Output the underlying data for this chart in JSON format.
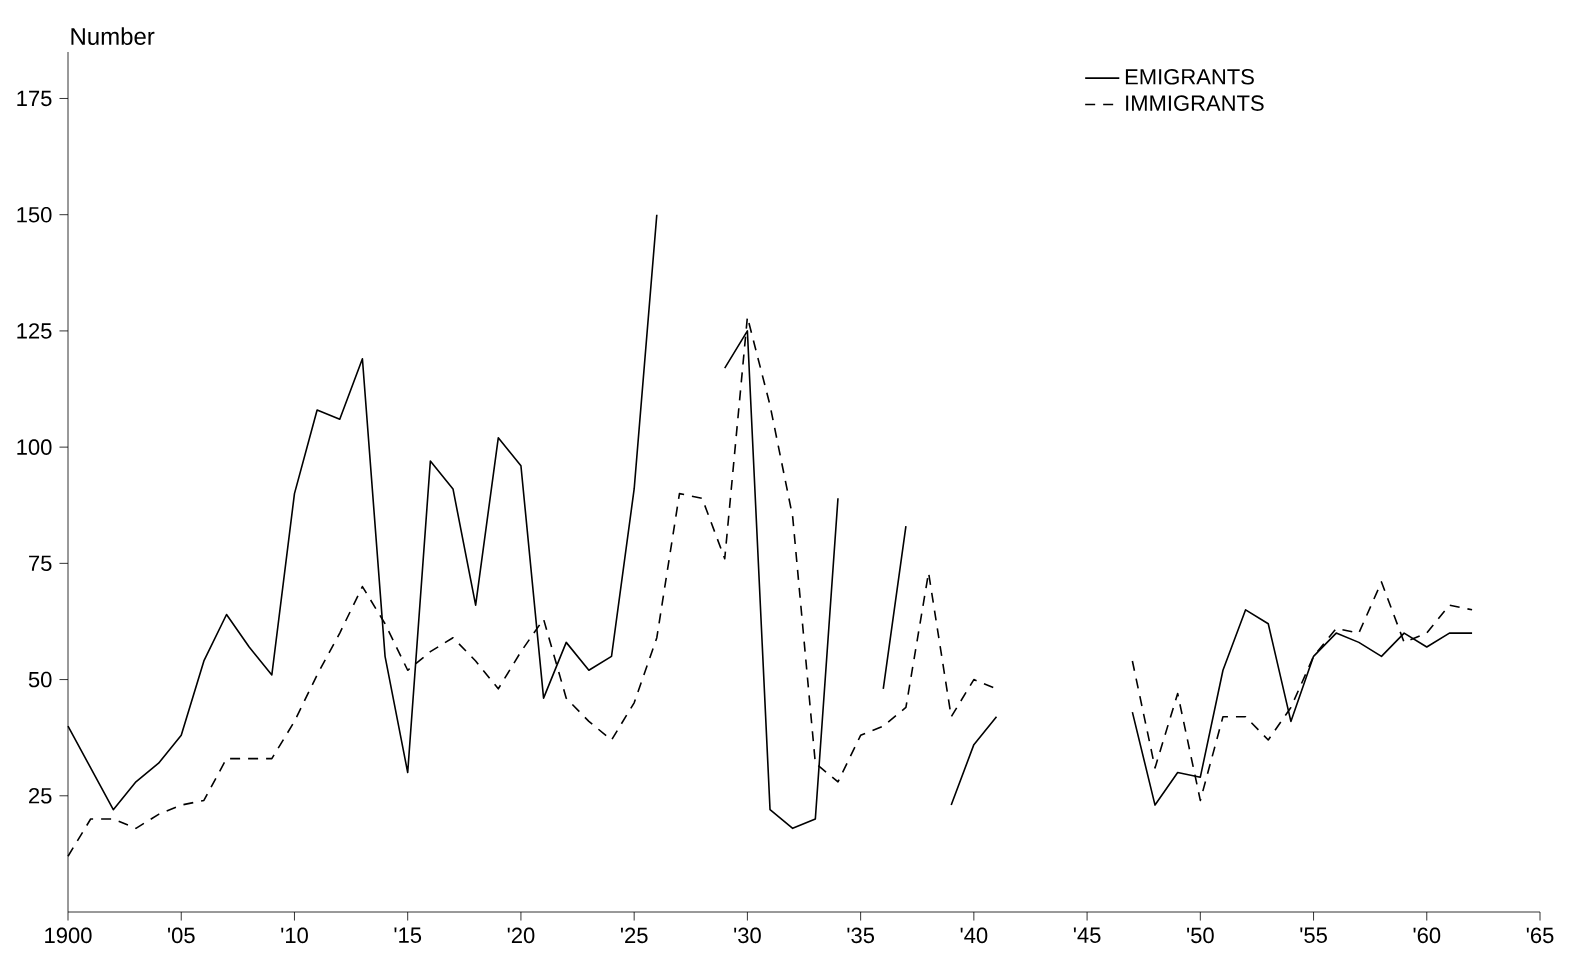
{
  "chart_data": {
    "type": "line",
    "ylabel": "Number",
    "x": [
      1900,
      1901,
      1902,
      1903,
      1904,
      1905,
      1906,
      1907,
      1908,
      1909,
      1910,
      1911,
      1912,
      1913,
      1914,
      1915,
      1916,
      1917,
      1918,
      1919,
      1920,
      1921,
      1922,
      1923,
      1924,
      1925,
      1926,
      1927,
      1928,
      1929,
      1930,
      1931,
      1932,
      1933,
      1934,
      1935,
      1936,
      1937,
      1938,
      1939,
      1940,
      1941,
      1942,
      1943,
      1944,
      1945,
      1946,
      1947,
      1948,
      1949,
      1950,
      1951,
      1952,
      1953,
      1954,
      1955,
      1956,
      1957,
      1958,
      1959,
      1960,
      1961,
      1962
    ],
    "series": [
      {
        "name": "EMIGRANTS",
        "color": "#000000",
        "line_style": "solid",
        "values": [
          40,
          31,
          22,
          28,
          32,
          38,
          54,
          64,
          57,
          51,
          90,
          108,
          106,
          119,
          55,
          30,
          97,
          91,
          66,
          102,
          96,
          46,
          58,
          52,
          55,
          91,
          150,
          null,
          null,
          117,
          125,
          22,
          18,
          20,
          89,
          null,
          48,
          83,
          null,
          23,
          36,
          42,
          null,
          null,
          null,
          null,
          null,
          43,
          23,
          30,
          29,
          52,
          65,
          62,
          41,
          55,
          60,
          58,
          55,
          60,
          57,
          60,
          60
        ]
      },
      {
        "name": "IMMIGRANTS",
        "color": "#000000",
        "line_style": "dashed",
        "values": [
          12,
          20,
          20,
          18,
          21,
          23,
          24,
          33,
          33,
          33,
          41,
          51,
          60,
          70,
          62,
          52,
          56,
          59,
          54,
          48,
          56,
          63,
          46,
          41,
          37,
          45,
          59,
          90,
          89,
          76,
          128,
          109,
          85,
          32,
          28,
          38,
          40,
          44,
          73,
          42,
          50,
          48,
          null,
          null,
          null,
          null,
          null,
          54,
          31,
          47,
          24,
          42,
          42,
          37,
          44,
          55,
          61,
          60,
          71,
          58,
          60,
          66,
          65
        ]
      }
    ],
    "xlim": [
      1900,
      1965
    ],
    "ylim": [
      0,
      185
    ],
    "xticks": [
      1900,
      {
        "value": 1905,
        "label": "'05"
      },
      {
        "value": 1910,
        "label": "'10"
      },
      {
        "value": 1915,
        "label": "'15"
      },
      {
        "value": 1920,
        "label": "'20"
      },
      {
        "value": 1925,
        "label": "'25"
      },
      {
        "value": 1930,
        "label": "'30"
      },
      {
        "value": 1935,
        "label": "'35"
      },
      {
        "value": 1940,
        "label": "'40"
      },
      {
        "value": 1945,
        "label": "'45"
      },
      {
        "value": 1950,
        "label": "'50"
      },
      {
        "value": 1955,
        "label": "'55"
      },
      {
        "value": 1960,
        "label": "'60"
      },
      {
        "value": 1965,
        "label": "'65"
      }
    ],
    "yticks": [
      25,
      50,
      75,
      100,
      125,
      150,
      175
    ],
    "legend": "top right",
    "grid": false,
    "marker": "none"
  }
}
